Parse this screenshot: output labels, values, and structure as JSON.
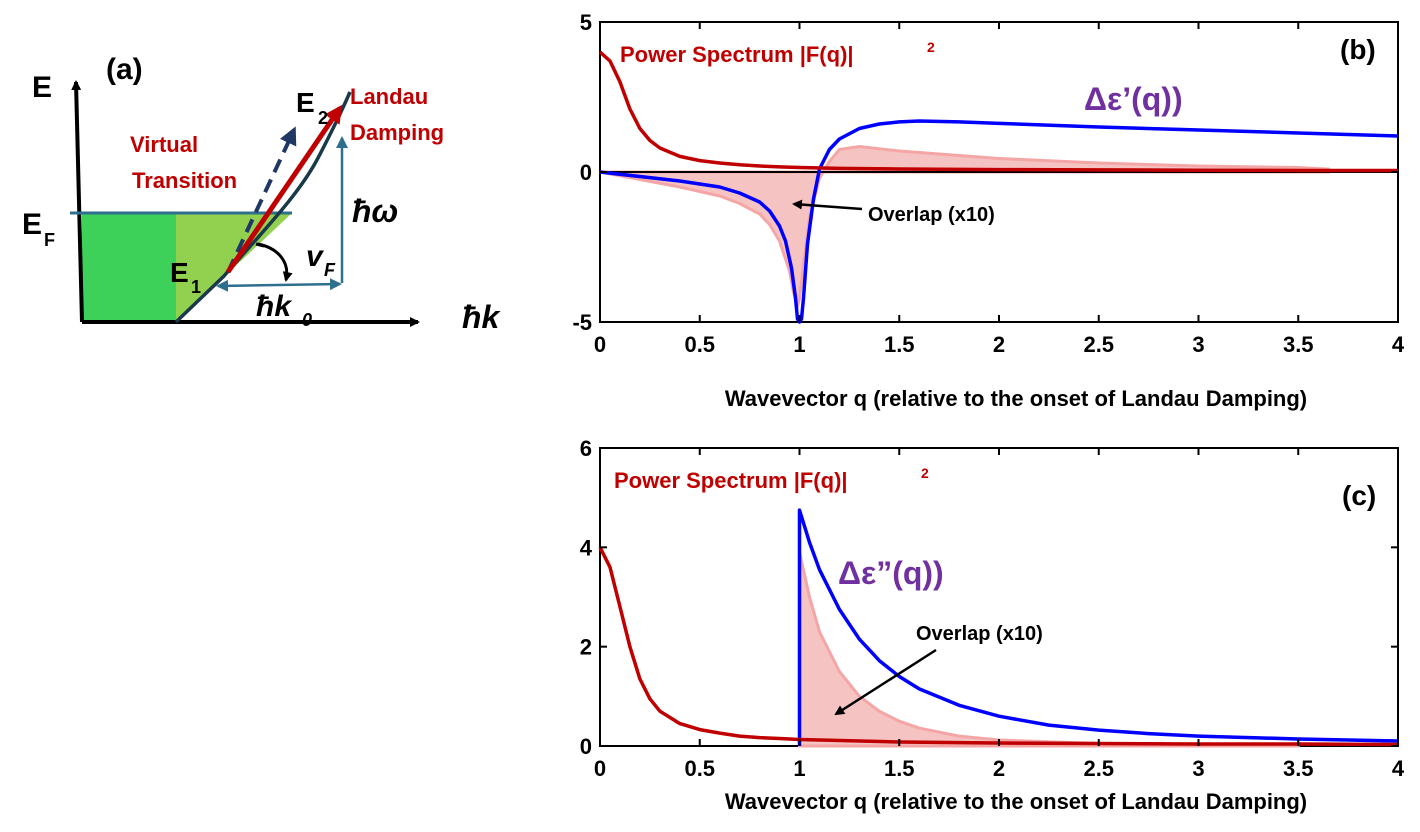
{
  "panel_a": {
    "label": "(a)",
    "y_axis": "E",
    "x_axis": "ħk",
    "ef": "E",
    "ef_sub": "F",
    "e1": "E",
    "e1_sub": "1",
    "e2": "E",
    "e2_sub": "2",
    "virtual_1": "Virtual",
    "virtual_2": "Transition",
    "landau_1": "Landau",
    "landau_2": "Damping",
    "hw": "ħω",
    "vf": "v",
    "vf_sub": "F",
    "hk0": "ħk",
    "hk0_sub": "0",
    "colors": {
      "dark_green": "#3dd159",
      "light_green": "#92d050",
      "red_arrow": "#c00000",
      "navy": "#1f3864",
      "teal": "#2e6f8e"
    }
  },
  "chart_data": [
    {
      "panel": "(b)",
      "type": "line",
      "xlabel": "Wavevector q (relative to the onset of Landau Damping)",
      "xlim": [
        0,
        4
      ],
      "ylim": [
        -5,
        5
      ],
      "xticks": [
        "0",
        "0.5",
        "1",
        "1.5",
        "2",
        "2.5",
        "3",
        "3.5",
        "4"
      ],
      "yticks": [
        "-5",
        "0",
        "5"
      ],
      "annotations": {
        "power": "Power Spectrum |F(q)|",
        "power_sup": "2",
        "delta": "Δε’(q))",
        "overlap": "Overlap (x10)"
      },
      "colors": {
        "power": "#c00000",
        "delta": "#0000ff",
        "overlap": "#f4a6a6",
        "delta_label": "#7030a0"
      },
      "series": [
        {
          "name": "Power Spectrum |F(q)|²",
          "x": [
            0,
            0.05,
            0.1,
            0.15,
            0.2,
            0.25,
            0.3,
            0.4,
            0.5,
            0.6,
            0.7,
            0.8,
            0.9,
            1.0,
            1.2,
            1.5,
            2.0,
            2.5,
            3.0,
            3.5,
            4.0
          ],
          "y": [
            4.0,
            3.7,
            3.0,
            2.1,
            1.45,
            1.05,
            0.8,
            0.52,
            0.38,
            0.3,
            0.24,
            0.2,
            0.17,
            0.15,
            0.12,
            0.1,
            0.08,
            0.07,
            0.06,
            0.05,
            0.05
          ]
        },
        {
          "name": "Δε’(q))",
          "x": [
            0,
            0.2,
            0.4,
            0.6,
            0.7,
            0.8,
            0.85,
            0.9,
            0.93,
            0.96,
            0.98,
            0.99,
            1.0,
            1.01,
            1.02,
            1.04,
            1.07,
            1.1,
            1.15,
            1.2,
            1.3,
            1.4,
            1.5,
            1.6,
            1.8,
            2.0,
            2.5,
            3.0,
            3.5,
            4.0
          ],
          "y": [
            0,
            -0.15,
            -0.3,
            -0.5,
            -0.7,
            -1.0,
            -1.3,
            -1.8,
            -2.3,
            -3.2,
            -4.2,
            -4.9,
            -5.0,
            -4.9,
            -4.2,
            -2.4,
            -0.9,
            0.1,
            0.75,
            1.1,
            1.45,
            1.6,
            1.67,
            1.7,
            1.67,
            1.62,
            1.5,
            1.4,
            1.3,
            1.2
          ]
        },
        {
          "name": "Overlap (x10)",
          "x": [
            0,
            0.2,
            0.4,
            0.6,
            0.7,
            0.8,
            0.85,
            0.9,
            0.95,
            0.97,
            0.99,
            1.0,
            1.05,
            1.1,
            1.15,
            1.2,
            1.3,
            1.5,
            2.0,
            2.5,
            3.0,
            3.5,
            3.65
          ],
          "y": [
            0,
            -0.25,
            -0.5,
            -0.8,
            -1.05,
            -1.4,
            -1.75,
            -2.3,
            -3.3,
            -4.0,
            -4.5,
            -4.2,
            -1.5,
            -0.2,
            0.35,
            0.75,
            0.85,
            0.7,
            0.45,
            0.3,
            0.2,
            0.15,
            0.1
          ]
        }
      ]
    },
    {
      "panel": "(c)",
      "type": "line",
      "xlabel": "Wavevector q (relative to the onset of Landau Damping)",
      "xlim": [
        0,
        4
      ],
      "ylim": [
        0,
        6
      ],
      "xticks": [
        "0",
        "0.5",
        "1",
        "1.5",
        "2",
        "2.5",
        "3",
        "3.5",
        "4"
      ],
      "yticks": [
        "0",
        "2",
        "4",
        "6"
      ],
      "annotations": {
        "power": "Power Spectrum |F(q)|",
        "power_sup": "2",
        "delta": "Δε”(q))",
        "overlap": "Overlap (x10)"
      },
      "colors": {
        "power": "#c00000",
        "delta": "#0000ff",
        "overlap": "#f4a6a6",
        "delta_label": "#7030a0"
      },
      "series": [
        {
          "name": "Power Spectrum |F(q)|²",
          "x": [
            0,
            0.05,
            0.1,
            0.15,
            0.2,
            0.25,
            0.3,
            0.4,
            0.5,
            0.6,
            0.7,
            0.8,
            0.9,
            1.0,
            1.5,
            2.0,
            2.5,
            3.0,
            3.5,
            4.0
          ],
          "y": [
            4.0,
            3.6,
            2.8,
            2.0,
            1.35,
            0.95,
            0.7,
            0.45,
            0.33,
            0.26,
            0.2,
            0.17,
            0.15,
            0.13,
            0.08,
            0.06,
            0.05,
            0.04,
            0.04,
            0.03
          ]
        },
        {
          "name": "Δε”(q))",
          "x": [
            1.0,
            1.0,
            1.05,
            1.1,
            1.2,
            1.3,
            1.4,
            1.5,
            1.6,
            1.8,
            2.0,
            2.25,
            2.5,
            2.75,
            3.0,
            3.5,
            4.0
          ],
          "y": [
            0,
            4.75,
            4.1,
            3.55,
            2.75,
            2.15,
            1.72,
            1.4,
            1.15,
            0.82,
            0.6,
            0.42,
            0.32,
            0.25,
            0.2,
            0.14,
            0.1
          ]
        },
        {
          "name": "Overlap (x10)",
          "x": [
            1.0,
            1.0,
            1.05,
            1.1,
            1.2,
            1.3,
            1.4,
            1.5,
            1.6,
            1.8,
            2.0,
            2.5,
            3.0,
            3.5
          ],
          "y": [
            0,
            3.9,
            3.0,
            2.3,
            1.5,
            1.0,
            0.7,
            0.5,
            0.36,
            0.2,
            0.12,
            0.05,
            0.02,
            0.01
          ]
        }
      ]
    }
  ]
}
